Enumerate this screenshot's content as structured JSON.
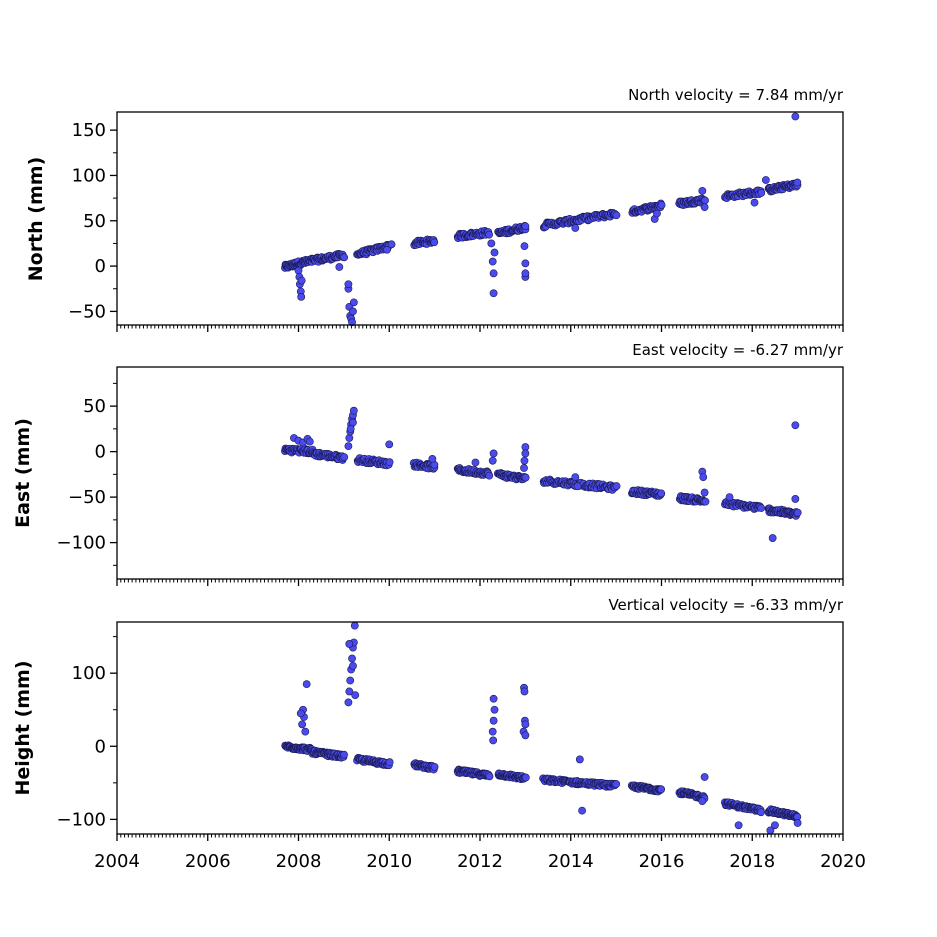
{
  "chart_data": [
    {
      "type": "scatter",
      "id": "north",
      "title": "North velocity = 7.84 mm/yr",
      "ylabel": "North (mm)",
      "xlim": [
        2004,
        2020
      ],
      "ylim": [
        -65,
        170
      ],
      "yticks": [
        -50,
        0,
        50,
        100,
        150
      ],
      "yticklabels": [
        "−50",
        "0",
        "50",
        "100",
        "150"
      ],
      "color": "#4a4aee",
      "segments": [
        {
          "x0": 2007.7,
          "x1": 2008.0,
          "y0": -1,
          "y1": 3,
          "n": 28
        },
        {
          "x0": 2008.0,
          "x1": 2008.3,
          "y0": 3,
          "y1": 6,
          "n": 24
        },
        {
          "x0": 2008.3,
          "x1": 2009.0,
          "y0": 6,
          "y1": 12,
          "n": 45
        },
        {
          "x0": 2009.3,
          "x1": 2010.0,
          "y0": 13,
          "y1": 22,
          "n": 42
        },
        {
          "x0": 2010.55,
          "x1": 2011.0,
          "y0": 25,
          "y1": 28,
          "n": 30
        },
        {
          "x0": 2011.5,
          "x1": 2012.2,
          "y0": 33,
          "y1": 37,
          "n": 40
        },
        {
          "x0": 2012.4,
          "x1": 2013.0,
          "y0": 36,
          "y1": 43,
          "n": 40
        },
        {
          "x0": 2013.4,
          "x1": 2015.0,
          "y0": 45,
          "y1": 58,
          "n": 80
        },
        {
          "x0": 2015.35,
          "x1": 2016.0,
          "y0": 60,
          "y1": 67,
          "n": 40
        },
        {
          "x0": 2016.4,
          "x1": 2016.95,
          "y0": 69,
          "y1": 73,
          "n": 38
        },
        {
          "x0": 2017.4,
          "x1": 2018.2,
          "y0": 77,
          "y1": 82,
          "n": 42
        },
        {
          "x0": 2018.35,
          "x1": 2019.0,
          "y0": 84,
          "y1": 90,
          "n": 50
        }
      ],
      "outliers": [
        [
          2008.0,
          -5
        ],
        [
          2008.02,
          -12
        ],
        [
          2008.03,
          -20
        ],
        [
          2008.05,
          -28
        ],
        [
          2008.06,
          -34
        ],
        [
          2008.07,
          -16
        ],
        [
          2009.1,
          -25
        ],
        [
          2009.12,
          -45
        ],
        [
          2009.14,
          -55
        ],
        [
          2009.16,
          -58
        ],
        [
          2009.18,
          -62
        ],
        [
          2009.2,
          -50
        ],
        [
          2009.22,
          -40
        ],
        [
          2009.1,
          -20
        ],
        [
          2008.9,
          -1
        ],
        [
          2009.95,
          18
        ],
        [
          2010.05,
          24
        ],
        [
          2012.3,
          -30
        ],
        [
          2012.3,
          -8
        ],
        [
          2012.28,
          5
        ],
        [
          2012.32,
          15
        ],
        [
          2012.25,
          25
        ],
        [
          2013.0,
          -12
        ],
        [
          2013.0,
          -8
        ],
        [
          2013.0,
          3
        ],
        [
          2012.98,
          22
        ],
        [
          2013.0,
          44
        ],
        [
          2014.1,
          42
        ],
        [
          2015.85,
          52
        ],
        [
          2015.9,
          58
        ],
        [
          2016.95,
          65
        ],
        [
          2016.9,
          83
        ],
        [
          2018.05,
          70
        ],
        [
          2018.3,
          95
        ],
        [
          2018.95,
          165
        ]
      ]
    },
    {
      "type": "scatter",
      "id": "east",
      "title": "East velocity = -6.27 mm/yr",
      "ylabel": "East (mm)",
      "xlim": [
        2004,
        2020
      ],
      "ylim": [
        -140,
        93
      ],
      "yticks": [
        -100,
        -50,
        0,
        50
      ],
      "yticklabels": [
        "−100",
        "−50",
        "0",
        "50"
      ],
      "color": "#4a4aee",
      "segments": [
        {
          "x0": 2007.7,
          "x1": 2008.3,
          "y0": 2,
          "y1": 0,
          "n": 40
        },
        {
          "x0": 2008.3,
          "x1": 2009.0,
          "y0": -2,
          "y1": -7,
          "n": 45
        },
        {
          "x0": 2009.3,
          "x1": 2010.0,
          "y0": -9,
          "y1": -13,
          "n": 40
        },
        {
          "x0": 2010.55,
          "x1": 2011.0,
          "y0": -14,
          "y1": -17,
          "n": 30
        },
        {
          "x0": 2011.5,
          "x1": 2012.2,
          "y0": -20,
          "y1": -24,
          "n": 40
        },
        {
          "x0": 2012.4,
          "x1": 2013.0,
          "y0": -25,
          "y1": -30,
          "n": 40
        },
        {
          "x0": 2013.4,
          "x1": 2015.0,
          "y0": -32,
          "y1": -40,
          "n": 80
        },
        {
          "x0": 2015.35,
          "x1": 2016.0,
          "y0": -44,
          "y1": -47,
          "n": 40
        },
        {
          "x0": 2016.4,
          "x1": 2016.95,
          "y0": -51,
          "y1": -54,
          "n": 38
        },
        {
          "x0": 2017.4,
          "x1": 2018.2,
          "y0": -57,
          "y1": -62,
          "n": 42
        },
        {
          "x0": 2018.35,
          "x1": 2019.0,
          "y0": -64,
          "y1": -69,
          "n": 50
        }
      ],
      "outliers": [
        [
          2007.9,
          15
        ],
        [
          2008.0,
          12
        ],
        [
          2008.1,
          10
        ],
        [
          2008.2,
          14
        ],
        [
          2008.25,
          11
        ],
        [
          2009.1,
          6
        ],
        [
          2009.12,
          15
        ],
        [
          2009.14,
          22
        ],
        [
          2009.16,
          30
        ],
        [
          2009.18,
          36
        ],
        [
          2009.2,
          40
        ],
        [
          2009.22,
          45
        ],
        [
          2009.2,
          32
        ],
        [
          2009.15,
          25
        ],
        [
          2010.0,
          8
        ],
        [
          2010.95,
          -8
        ],
        [
          2011.9,
          -12
        ],
        [
          2012.3,
          -2
        ],
        [
          2012.28,
          -10
        ],
        [
          2013.0,
          5
        ],
        [
          2013.0,
          -2
        ],
        [
          2012.98,
          -10
        ],
        [
          2012.97,
          -18
        ],
        [
          2014.1,
          -28
        ],
        [
          2014.15,
          -38
        ],
        [
          2016.9,
          -22
        ],
        [
          2016.92,
          -28
        ],
        [
          2016.95,
          -45
        ],
        [
          2016.97,
          -55
        ],
        [
          2017.5,
          -50
        ],
        [
          2018.45,
          -95
        ],
        [
          2018.95,
          -52
        ],
        [
          2018.95,
          29
        ]
      ]
    },
    {
      "type": "scatter",
      "id": "height",
      "title": "Vertical velocity = -6.33 mm/yr",
      "ylabel": "Height (mm)",
      "xlim": [
        2004,
        2020
      ],
      "ylim": [
        -120,
        170
      ],
      "yticks": [
        -100,
        0,
        100
      ],
      "yticklabels": [
        "−100",
        "0",
        "100"
      ],
      "color": "#4a4aee",
      "segments": [
        {
          "x0": 2007.7,
          "x1": 2008.3,
          "y0": 0,
          "y1": -5,
          "n": 50
        },
        {
          "x0": 2008.3,
          "x1": 2009.0,
          "y0": -8,
          "y1": -14,
          "n": 55
        },
        {
          "x0": 2009.3,
          "x1": 2010.0,
          "y0": -18,
          "y1": -24,
          "n": 50
        },
        {
          "x0": 2010.55,
          "x1": 2011.0,
          "y0": -25,
          "y1": -30,
          "n": 38
        },
        {
          "x0": 2011.5,
          "x1": 2012.2,
          "y0": -34,
          "y1": -40,
          "n": 55
        },
        {
          "x0": 2012.4,
          "x1": 2013.0,
          "y0": -38,
          "y1": -44,
          "n": 50
        },
        {
          "x0": 2013.4,
          "x1": 2015.0,
          "y0": -46,
          "y1": -54,
          "n": 100
        },
        {
          "x0": 2015.35,
          "x1": 2016.0,
          "y0": -55,
          "y1": -60,
          "n": 50
        },
        {
          "x0": 2016.4,
          "x1": 2016.95,
          "y0": -63,
          "y1": -70,
          "n": 45
        },
        {
          "x0": 2017.4,
          "x1": 2018.2,
          "y0": -78,
          "y1": -88,
          "n": 55
        },
        {
          "x0": 2018.35,
          "x1": 2019.0,
          "y0": -88,
          "y1": -96,
          "n": 60
        }
      ],
      "outliers": [
        [
          2008.1,
          50
        ],
        [
          2008.12,
          40
        ],
        [
          2008.08,
          30
        ],
        [
          2008.15,
          20
        ],
        [
          2008.18,
          85
        ],
        [
          2008.05,
          45
        ],
        [
          2009.1,
          60
        ],
        [
          2009.12,
          75
        ],
        [
          2009.14,
          90
        ],
        [
          2009.16,
          105
        ],
        [
          2009.18,
          120
        ],
        [
          2009.2,
          135
        ],
        [
          2009.22,
          142
        ],
        [
          2009.24,
          165
        ],
        [
          2009.12,
          140
        ],
        [
          2009.2,
          110
        ],
        [
          2009.25,
          70
        ],
        [
          2012.3,
          65
        ],
        [
          2012.32,
          50
        ],
        [
          2012.3,
          35
        ],
        [
          2012.28,
          20
        ],
        [
          2012.29,
          8
        ],
        [
          2012.97,
          80
        ],
        [
          2012.98,
          75
        ],
        [
          2012.99,
          35
        ],
        [
          2013.0,
          30
        ],
        [
          2012.96,
          20
        ],
        [
          2013.0,
          15
        ],
        [
          2014.2,
          -18
        ],
        [
          2014.25,
          -88
        ],
        [
          2016.95,
          -42
        ],
        [
          2016.9,
          -75
        ],
        [
          2017.7,
          -108
        ],
        [
          2018.4,
          -115
        ],
        [
          2018.5,
          -108
        ],
        [
          2019.0,
          -105
        ]
      ]
    }
  ],
  "x_axis": {
    "ticks": [
      2004,
      2006,
      2008,
      2010,
      2012,
      2014,
      2016,
      2018,
      2020
    ],
    "ticklabels": [
      "2004",
      "2006",
      "2008",
      "2010",
      "2012",
      "2014",
      "2016",
      "2018",
      "2020"
    ]
  }
}
